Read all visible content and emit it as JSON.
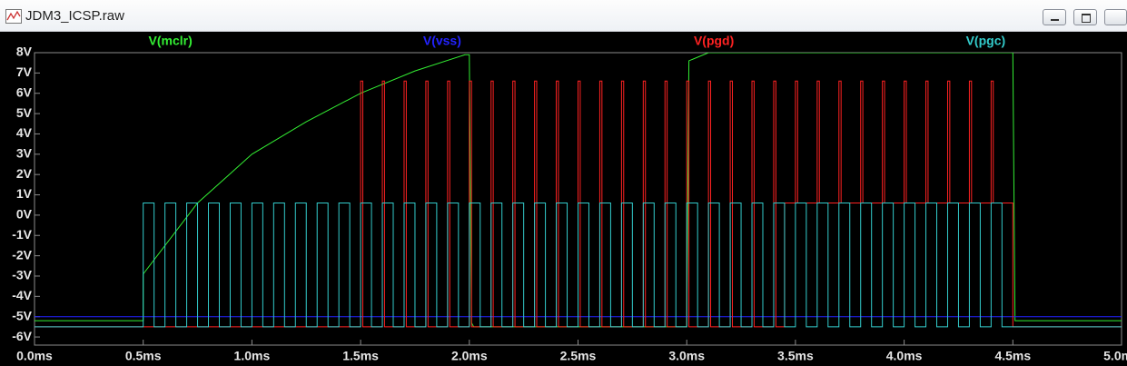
{
  "window": {
    "title": "JDM3_ICSP.raw"
  },
  "chart_data": {
    "type": "line",
    "xlim": [
      0,
      5
    ],
    "ylim": [
      -6.4,
      8
    ],
    "xticks": [
      {
        "value": 0,
        "label": "0.0ms"
      },
      {
        "value": 0.5,
        "label": "0.5ms"
      },
      {
        "value": 1,
        "label": "1.0ms"
      },
      {
        "value": 1.5,
        "label": "1.5ms"
      },
      {
        "value": 2,
        "label": "2.0ms"
      },
      {
        "value": 2.5,
        "label": "2.5ms"
      },
      {
        "value": 3,
        "label": "3.0ms"
      },
      {
        "value": 3.5,
        "label": "3.5ms"
      },
      {
        "value": 4,
        "label": "4.0ms"
      },
      {
        "value": 4.5,
        "label": "4.5ms"
      },
      {
        "value": 5,
        "label": "5.0ms"
      }
    ],
    "yticks": [
      {
        "value": -6,
        "label": "-6V"
      },
      {
        "value": -5,
        "label": "-5V"
      },
      {
        "value": -4,
        "label": "-4V"
      },
      {
        "value": -3,
        "label": "-3V"
      },
      {
        "value": -2,
        "label": "-2V"
      },
      {
        "value": -1,
        "label": "-1V"
      },
      {
        "value": 0,
        "label": "0V"
      },
      {
        "value": 1,
        "label": "1V"
      },
      {
        "value": 2,
        "label": "2V"
      },
      {
        "value": 3,
        "label": "3V"
      },
      {
        "value": 4,
        "label": "4V"
      },
      {
        "value": 5,
        "label": "5V"
      },
      {
        "value": 6,
        "label": "6V"
      },
      {
        "value": 7,
        "label": "7V"
      },
      {
        "value": 8,
        "label": "8V"
      }
    ],
    "series": [
      {
        "name": "V(mclr)",
        "color": "#33ee33",
        "x": [
          0,
          0.5,
          0.5,
          0.75,
          1.0,
          1.25,
          1.5,
          1.75,
          1.98,
          2.0,
          2.01,
          2.02,
          3.0,
          3.01,
          3.1,
          4.5,
          4.51,
          5
        ],
        "values": [
          -5.2,
          -5.2,
          -2.9,
          0.6,
          3.0,
          4.6,
          6.0,
          7.1,
          7.9,
          7.9,
          -5.3,
          -5.5,
          -5.5,
          7.6,
          8.0,
          8.0,
          -5.2,
          -5.2
        ]
      },
      {
        "name": "V(vss)",
        "color": "#2222ff",
        "x": [
          0,
          5
        ],
        "values": [
          -5,
          -5
        ]
      },
      {
        "name": "V(pgd)",
        "color": "#ff2222",
        "x": [
          0,
          1.5,
          1.5,
          1.51,
          1.51,
          1.6,
          1.6,
          1.61,
          1.61,
          1.7,
          1.7,
          1.71,
          1.71,
          1.8,
          1.8,
          1.81,
          1.81,
          1.9,
          1.9,
          1.91,
          1.91,
          2.0,
          2.0,
          2.01,
          2.01,
          2.1,
          2.1,
          2.11,
          2.11,
          2.2,
          2.2,
          2.21,
          2.21,
          2.3,
          2.3,
          2.31,
          2.31,
          2.4,
          2.4,
          2.41,
          2.41,
          2.5,
          2.5,
          2.51,
          2.51,
          2.6,
          2.6,
          2.61,
          2.61,
          2.7,
          2.7,
          2.71,
          2.71,
          2.8,
          2.8,
          2.81,
          2.81,
          2.9,
          2.9,
          2.91,
          2.91,
          3.0,
          3.0,
          3.01,
          3.01,
          3.1,
          3.1,
          3.11,
          3.11,
          3.2,
          3.2,
          3.21,
          3.21,
          3.3,
          3.3,
          3.31,
          3.31,
          3.4,
          3.4,
          3.41,
          3.41,
          3.45,
          3.45,
          3.5,
          3.5,
          3.51,
          3.51,
          3.6,
          3.6,
          3.61,
          3.61,
          3.7,
          3.7,
          3.71,
          3.71,
          3.8,
          3.8,
          3.81,
          3.81,
          3.9,
          3.9,
          3.91,
          3.91,
          4.0,
          4.0,
          4.01,
          4.01,
          4.1,
          4.1,
          4.11,
          4.11,
          4.2,
          4.2,
          4.21,
          4.21,
          4.3,
          4.3,
          4.31,
          4.31,
          4.4,
          4.4,
          4.41,
          4.41,
          4.5,
          4.5,
          5
        ],
        "values": [
          -5.5,
          -5.5,
          6.6,
          6.6,
          -5.5,
          -5.5,
          6.6,
          6.6,
          -5.5,
          -5.5,
          6.6,
          6.6,
          -5.5,
          -5.5,
          6.6,
          6.6,
          -5.5,
          -5.5,
          6.6,
          6.6,
          -5.5,
          -5.5,
          6.6,
          6.6,
          -5.5,
          -5.5,
          6.6,
          6.6,
          -5.5,
          -5.5,
          6.6,
          6.6,
          -5.5,
          -5.5,
          6.6,
          6.6,
          -5.5,
          -5.5,
          6.6,
          6.6,
          -5.5,
          -5.5,
          6.6,
          6.6,
          -5.5,
          -5.5,
          6.6,
          6.6,
          -5.5,
          -5.5,
          6.6,
          6.6,
          -5.5,
          -5.5,
          6.6,
          6.6,
          -5.5,
          -5.5,
          6.6,
          6.6,
          -5.5,
          -5.5,
          6.6,
          6.6,
          -5.5,
          -5.5,
          6.6,
          6.6,
          -5.5,
          -5.5,
          6.6,
          6.6,
          -5.5,
          -5.5,
          6.6,
          6.6,
          -5.5,
          -5.5,
          6.6,
          6.6,
          -5.5,
          -5.5,
          0.6,
          0.6,
          6.6,
          6.6,
          0.6,
          0.6,
          6.6,
          6.6,
          0.6,
          0.6,
          6.6,
          6.6,
          0.6,
          0.6,
          6.6,
          6.6,
          0.6,
          0.6,
          6.6,
          6.6,
          0.6,
          0.6,
          6.6,
          6.6,
          0.6,
          0.6,
          6.6,
          6.6,
          0.6,
          0.6,
          6.6,
          6.6,
          0.6,
          0.6,
          6.6,
          6.6,
          0.6,
          0.6,
          6.6,
          6.6,
          0.6,
          0.6,
          -5.5,
          -5.5
        ]
      },
      {
        "name": "V(pgc)",
        "color": "#33cccc",
        "x": [
          0,
          0.5,
          0.5,
          0.55,
          0.55,
          0.6,
          0.6,
          0.65,
          0.65,
          0.7,
          0.7,
          0.75,
          0.75,
          0.8,
          0.8,
          0.85,
          0.85,
          0.9,
          0.9,
          0.95,
          0.95,
          1.0,
          1.0,
          1.05,
          1.05,
          1.1,
          1.1,
          1.15,
          1.15,
          1.2,
          1.2,
          1.25,
          1.25,
          1.3,
          1.3,
          1.35,
          1.35,
          1.4,
          1.4,
          1.45,
          1.45,
          1.5,
          1.5,
          1.55,
          1.55,
          1.6,
          1.6,
          1.65,
          1.65,
          1.7,
          1.7,
          1.75,
          1.75,
          1.8,
          1.8,
          1.85,
          1.85,
          1.9,
          1.9,
          1.95,
          1.95,
          2.0,
          2.0,
          2.05,
          2.05,
          2.1,
          2.1,
          2.15,
          2.15,
          2.2,
          2.2,
          2.25,
          2.25,
          2.3,
          2.3,
          2.35,
          2.35,
          2.4,
          2.4,
          2.45,
          2.45,
          2.5,
          2.5,
          2.55,
          2.55,
          2.6,
          2.6,
          2.65,
          2.65,
          2.7,
          2.7,
          2.75,
          2.75,
          2.8,
          2.8,
          2.85,
          2.85,
          2.9,
          2.9,
          2.95,
          2.95,
          3.0,
          3.0,
          3.05,
          3.05,
          3.1,
          3.1,
          3.15,
          3.15,
          3.2,
          3.2,
          3.25,
          3.25,
          3.3,
          3.3,
          3.35,
          3.35,
          3.4,
          3.4,
          3.45,
          3.45,
          3.5,
          3.5,
          3.55,
          3.55,
          3.6,
          3.6,
          3.65,
          3.65,
          3.7,
          3.7,
          3.75,
          3.75,
          3.8,
          3.8,
          3.85,
          3.85,
          3.9,
          3.9,
          3.95,
          3.95,
          4.0,
          4.0,
          4.05,
          4.05,
          4.1,
          4.1,
          4.15,
          4.15,
          4.2,
          4.2,
          4.25,
          4.25,
          4.3,
          4.3,
          4.35,
          4.35,
          4.4,
          4.4,
          4.45,
          4.45,
          5
        ],
        "values": [
          -5.5,
          -5.5,
          0.6,
          0.6,
          -5.5,
          -5.5,
          0.6,
          0.6,
          -5.5,
          -5.5,
          0.6,
          0.6,
          -5.5,
          -5.5,
          0.6,
          0.6,
          -5.5,
          -5.5,
          0.6,
          0.6,
          -5.5,
          -5.5,
          0.6,
          0.6,
          -5.5,
          -5.5,
          0.6,
          0.6,
          -5.5,
          -5.5,
          0.6,
          0.6,
          -5.5,
          -5.5,
          0.6,
          0.6,
          -5.5,
          -5.5,
          0.6,
          0.6,
          -5.5,
          -5.5,
          0.6,
          0.6,
          -5.5,
          -5.5,
          0.6,
          0.6,
          -5.5,
          -5.5,
          0.6,
          0.6,
          -5.5,
          -5.5,
          0.6,
          0.6,
          -5.5,
          -5.5,
          0.6,
          0.6,
          -5.5,
          -5.5,
          0.6,
          0.6,
          -5.5,
          -5.5,
          0.6,
          0.6,
          -5.5,
          -5.5,
          0.6,
          0.6,
          -5.5,
          -5.5,
          0.6,
          0.6,
          -5.5,
          -5.5,
          0.6,
          0.6,
          -5.5,
          -5.5,
          0.6,
          0.6,
          -5.5,
          -5.5,
          0.6,
          0.6,
          -5.5,
          -5.5,
          0.6,
          0.6,
          -5.5,
          -5.5,
          0.6,
          0.6,
          -5.5,
          -5.5,
          0.6,
          0.6,
          -5.5,
          -5.5,
          0.6,
          0.6,
          -5.5,
          -5.5,
          0.6,
          0.6,
          -5.5,
          -5.5,
          0.6,
          0.6,
          -5.5,
          -5.5,
          0.6,
          0.6,
          -5.5,
          -5.5,
          0.6,
          0.6,
          -5.5,
          -5.5,
          0.6,
          0.6,
          -5.5,
          -5.5,
          0.6,
          0.6,
          -5.5,
          -5.5,
          0.6,
          0.6,
          -5.5,
          -5.5,
          0.6,
          0.6,
          -5.5,
          -5.5,
          0.6,
          0.6,
          -5.5,
          -5.5,
          0.6,
          0.6,
          -5.5,
          -5.5,
          0.6,
          0.6,
          -5.5,
          -5.5,
          0.6,
          0.6,
          -5.5,
          -5.5,
          0.6,
          0.6,
          -5.5,
          -5.5,
          0.6,
          0.6,
          -5.5,
          -5.5
        ]
      }
    ]
  }
}
